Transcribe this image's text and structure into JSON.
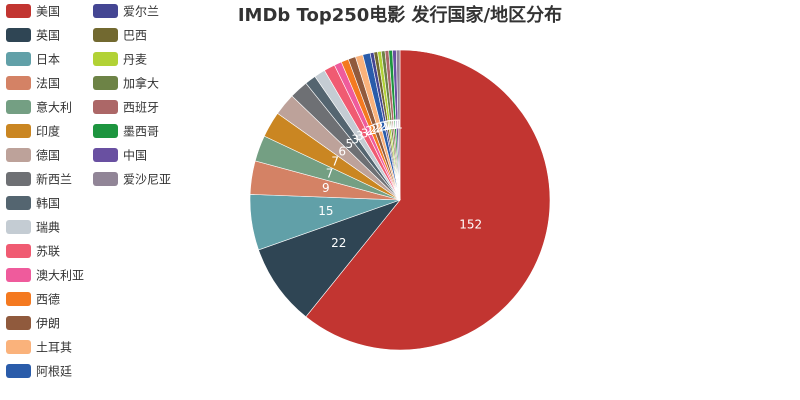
{
  "chart_data": {
    "type": "pie",
    "title": "IMDb Top250电影 发行国家/地区分布",
    "colors": {
      "美国": "#c23531",
      "英国": "#2f4554",
      "日本": "#61a0a8",
      "法国": "#d48265",
      "意大利": "#749f83",
      "印度": "#ca8622",
      "德国": "#bda29a",
      "新西兰": "#6e7074",
      "韩国": "#546570",
      "瑞典": "#c4ccd3",
      "苏联": "#f05b72",
      "澳大利亚": "#ef5b9c",
      "西德": "#f47920",
      "伊朗": "#905a3d",
      "土耳其": "#fab27b",
      "阿根廷": "#2a5caa",
      "爱尔兰": "#444693",
      "巴西": "#726930",
      "丹麦": "#b2d235",
      "加拿大": "#6d8346",
      "西班牙": "#ac6767",
      "墨西哥": "#1d953f",
      "中国": "#6950a1",
      "爱沙尼亚": "#918597"
    },
    "slices": [
      {
        "name": "美国",
        "value": 152
      },
      {
        "name": "英国",
        "value": 22
      },
      {
        "name": "日本",
        "value": 15
      },
      {
        "name": "法国",
        "value": 9
      },
      {
        "name": "意大利",
        "value": 7
      },
      {
        "name": "印度",
        "value": 7
      },
      {
        "name": "德国",
        "value": 6
      },
      {
        "name": "新西兰",
        "value": 5
      },
      {
        "name": "韩国",
        "value": 3
      },
      {
        "name": "瑞典",
        "value": 3
      },
      {
        "name": "苏联",
        "value": 3
      },
      {
        "name": "澳大利亚",
        "value": 2
      },
      {
        "name": "西德",
        "value": 2
      },
      {
        "name": "伊朗",
        "value": 2
      },
      {
        "name": "土耳其",
        "value": 2
      },
      {
        "name": "阿根廷",
        "value": 2
      },
      {
        "name": "爱尔兰",
        "value": 1
      },
      {
        "name": "巴西",
        "value": 1
      },
      {
        "name": "丹麦",
        "value": 1
      },
      {
        "name": "加拿大",
        "value": 1
      },
      {
        "name": "西班牙",
        "value": 1
      },
      {
        "name": "墨西哥",
        "value": 1
      },
      {
        "name": "中国",
        "value": 1
      },
      {
        "name": "爱沙尼亚",
        "value": 1
      }
    ],
    "legend": {
      "position": "left",
      "columns": [
        [
          "美国",
          "英国",
          "日本",
          "法国",
          "意大利",
          "印度",
          "德国",
          "新西兰",
          "韩国",
          "瑞典",
          "苏联",
          "澳大利亚",
          "西德",
          "伊朗",
          "土耳其",
          "阿根廷"
        ],
        [
          "爱尔兰",
          "巴西",
          "丹麦",
          "加拿大",
          "西班牙",
          "墨西哥",
          "中国",
          "爱沙尼亚"
        ]
      ]
    },
    "label_position": "inside"
  }
}
